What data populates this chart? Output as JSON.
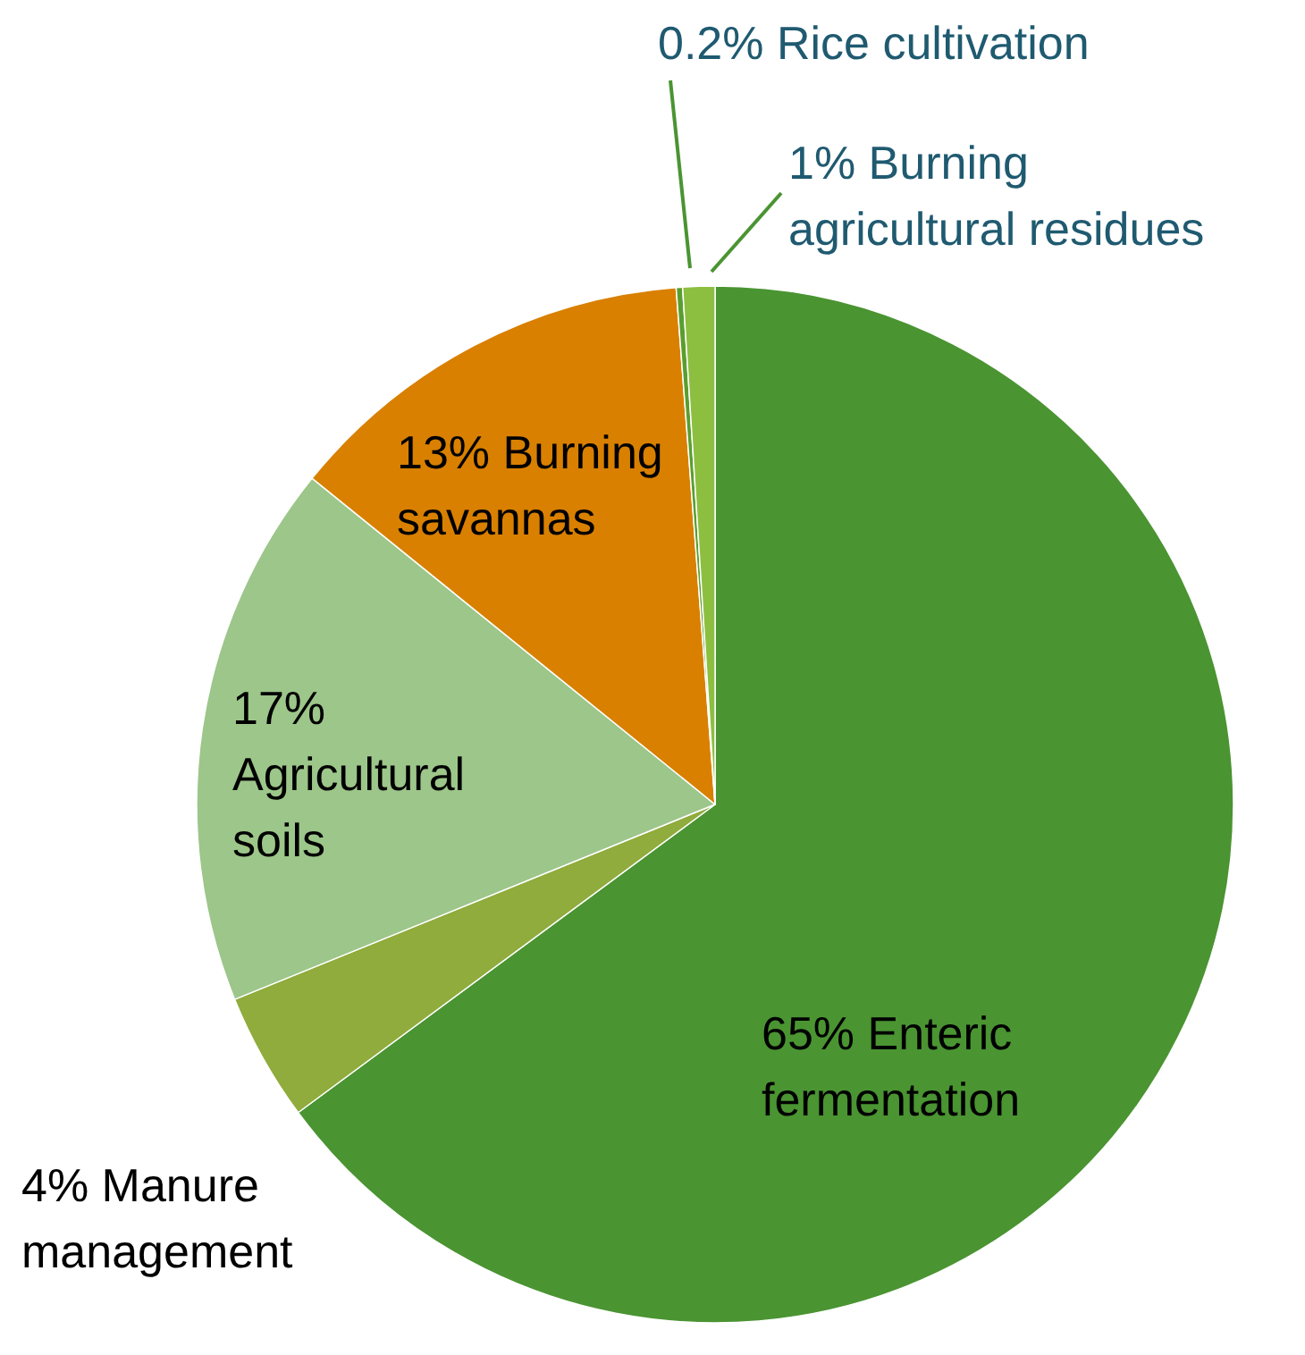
{
  "chart_data": {
    "type": "pie",
    "categories": [
      "Enteric fermentation",
      "Manure management",
      "Agricultural soils",
      "Burning savannas",
      "Rice cultivation",
      "Burning agricultural residues"
    ],
    "values": [
      65,
      4,
      17,
      13,
      0.2,
      1
    ],
    "colors": [
      "#4a9432",
      "#8fac3c",
      "#9dc68a",
      "#d98000",
      "#5a9e2e",
      "#8cbf3f"
    ],
    "value_labels": [
      "65%",
      "4%",
      "17%",
      "13%",
      "0.2%",
      "1%"
    ]
  }
}
